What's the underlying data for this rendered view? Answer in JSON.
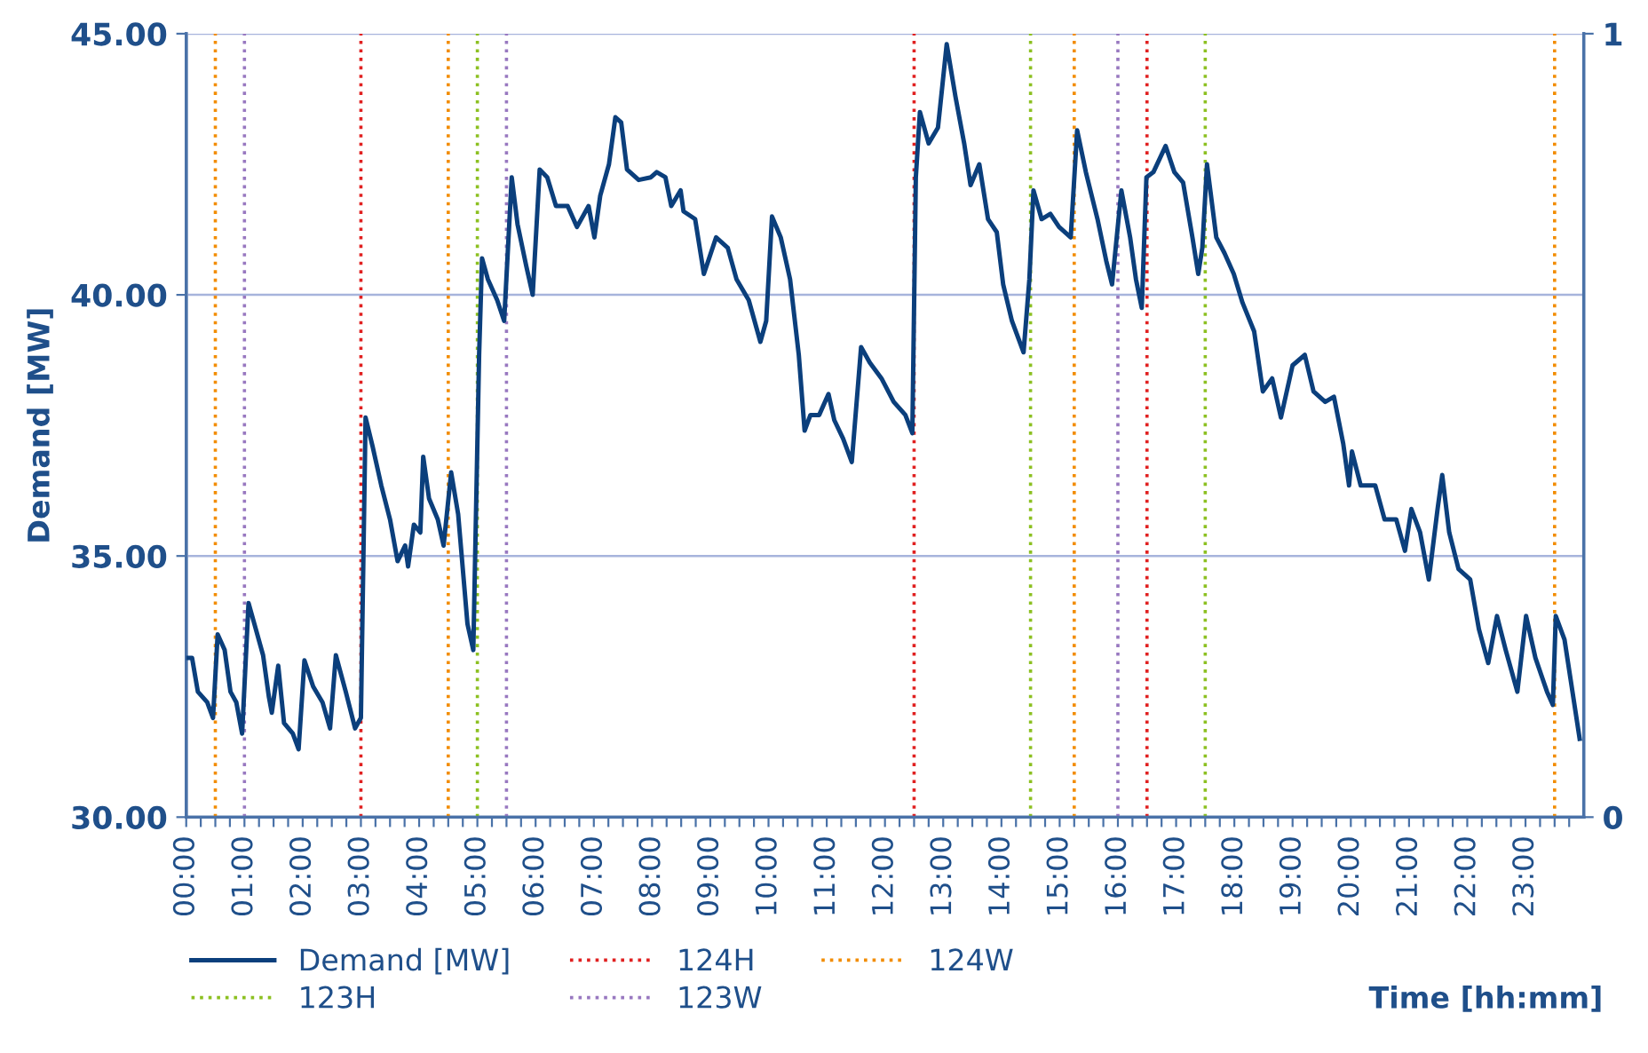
{
  "chart_data": {
    "type": "line",
    "xlabel": "Time [hh:mm]",
    "ylabel": "Demand [MW]",
    "xlim": [
      0,
      24
    ],
    "ylim": [
      30,
      45
    ],
    "y2lim": [
      0,
      1
    ],
    "yticks": [
      {
        "value": 30,
        "label": "30.00"
      },
      {
        "value": 35,
        "label": "35.00"
      },
      {
        "value": 40,
        "label": "40.00"
      },
      {
        "value": 45,
        "label": "45.00"
      }
    ],
    "y2ticks": [
      0,
      1
    ],
    "grid": "y",
    "legend": "bottom",
    "xticks": [
      {
        "value": 0,
        "label": "00:00"
      },
      {
        "value": 0.25,
        "label": null
      },
      {
        "value": 0.5,
        "label": null
      },
      {
        "value": 0.75,
        "label": null
      },
      {
        "value": 1,
        "label": "01:00"
      },
      {
        "value": 1.25,
        "label": null
      },
      {
        "value": 1.5,
        "label": null
      },
      {
        "value": 1.75,
        "label": null
      },
      {
        "value": 2,
        "label": "02:00"
      },
      {
        "value": 2.25,
        "label": null
      },
      {
        "value": 2.5,
        "label": null
      },
      {
        "value": 2.75,
        "label": null
      },
      {
        "value": 3,
        "label": "03:00"
      },
      {
        "value": 3.25,
        "label": null
      },
      {
        "value": 3.5,
        "label": null
      },
      {
        "value": 3.75,
        "label": null
      },
      {
        "value": 4,
        "label": "04:00"
      },
      {
        "value": 4.25,
        "label": null
      },
      {
        "value": 4.5,
        "label": null
      },
      {
        "value": 4.75,
        "label": null
      },
      {
        "value": 5,
        "label": "05:00"
      },
      {
        "value": 5.25,
        "label": null
      },
      {
        "value": 5.5,
        "label": null
      },
      {
        "value": 5.75,
        "label": null
      },
      {
        "value": 6,
        "label": "06:00"
      },
      {
        "value": 6.25,
        "label": null
      },
      {
        "value": 6.5,
        "label": null
      },
      {
        "value": 6.75,
        "label": null
      },
      {
        "value": 7,
        "label": "07:00"
      },
      {
        "value": 7.25,
        "label": null
      },
      {
        "value": 7.5,
        "label": null
      },
      {
        "value": 7.75,
        "label": null
      },
      {
        "value": 8,
        "label": "08:00"
      },
      {
        "value": 8.25,
        "label": null
      },
      {
        "value": 8.5,
        "label": null
      },
      {
        "value": 8.75,
        "label": null
      },
      {
        "value": 9,
        "label": "09:00"
      },
      {
        "value": 9.25,
        "label": null
      },
      {
        "value": 9.5,
        "label": null
      },
      {
        "value": 9.75,
        "label": null
      },
      {
        "value": 10,
        "label": "10:00"
      },
      {
        "value": 10.25,
        "label": null
      },
      {
        "value": 10.5,
        "label": null
      },
      {
        "value": 10.75,
        "label": null
      },
      {
        "value": 11,
        "label": "11:00"
      },
      {
        "value": 11.25,
        "label": null
      },
      {
        "value": 11.5,
        "label": null
      },
      {
        "value": 11.75,
        "label": null
      },
      {
        "value": 12,
        "label": "12:00"
      },
      {
        "value": 12.25,
        "label": null
      },
      {
        "value": 12.5,
        "label": null
      },
      {
        "value": 12.75,
        "label": null
      },
      {
        "value": 13,
        "label": "13:00"
      },
      {
        "value": 13.25,
        "label": null
      },
      {
        "value": 13.5,
        "label": null
      },
      {
        "value": 13.75,
        "label": null
      },
      {
        "value": 14,
        "label": "14:00"
      },
      {
        "value": 14.25,
        "label": null
      },
      {
        "value": 14.5,
        "label": null
      },
      {
        "value": 14.75,
        "label": null
      },
      {
        "value": 15,
        "label": "15:00"
      },
      {
        "value": 15.25,
        "label": null
      },
      {
        "value": 15.5,
        "label": null
      },
      {
        "value": 15.75,
        "label": null
      },
      {
        "value": 16,
        "label": "16:00"
      },
      {
        "value": 16.25,
        "label": null
      },
      {
        "value": 16.5,
        "label": null
      },
      {
        "value": 16.75,
        "label": null
      },
      {
        "value": 17,
        "label": "17:00"
      },
      {
        "value": 17.25,
        "label": null
      },
      {
        "value": 17.5,
        "label": null
      },
      {
        "value": 17.75,
        "label": null
      },
      {
        "value": 18,
        "label": "18:00"
      },
      {
        "value": 18.25,
        "label": null
      },
      {
        "value": 18.5,
        "label": null
      },
      {
        "value": 18.75,
        "label": null
      },
      {
        "value": 19,
        "label": "19:00"
      },
      {
        "value": 19.25,
        "label": null
      },
      {
        "value": 19.5,
        "label": null
      },
      {
        "value": 19.75,
        "label": null
      },
      {
        "value": 20,
        "label": "20:00"
      },
      {
        "value": 20.25,
        "label": null
      },
      {
        "value": 20.5,
        "label": null
      },
      {
        "value": 20.75,
        "label": null
      },
      {
        "value": 21,
        "label": "21:00"
      },
      {
        "value": 21.25,
        "label": null
      },
      {
        "value": 21.5,
        "label": null
      },
      {
        "value": 21.75,
        "label": null
      },
      {
        "value": 22,
        "label": "22:00"
      },
      {
        "value": 22.25,
        "label": null
      },
      {
        "value": 22.5,
        "label": null
      },
      {
        "value": 22.75,
        "label": null
      },
      {
        "value": 23,
        "label": "23:00"
      },
      {
        "value": 23.25,
        "label": null
      },
      {
        "value": 23.5,
        "label": null
      },
      {
        "value": 23.75,
        "label": null
      }
    ],
    "series": [
      {
        "name": "Demand [MW]",
        "color": "#0b3f7c",
        "line_style": "solid",
        "x": [
          0.03,
          0.1,
          0.2,
          0.36,
          0.46,
          0.54,
          0.66,
          0.76,
          0.86,
          0.96,
          1.07,
          1.17,
          1.32,
          1.42,
          1.47,
          1.58,
          1.68,
          1.83,
          1.93,
          2.03,
          2.18,
          2.34,
          2.47,
          2.57,
          2.74,
          2.9,
          3.0,
          3.08,
          3.2,
          3.35,
          3.5,
          3.63,
          3.76,
          3.81,
          3.91,
          4.02,
          4.07,
          4.17,
          4.32,
          4.42,
          4.55,
          4.67,
          4.83,
          4.93,
          5.03,
          5.08,
          5.18,
          5.34,
          5.46,
          5.59,
          5.69,
          5.84,
          5.95,
          6.07,
          6.2,
          6.35,
          6.55,
          6.71,
          6.91,
          7.01,
          7.11,
          7.26,
          7.37,
          7.47,
          7.57,
          7.77,
          7.98,
          8.08,
          8.23,
          8.33,
          8.49,
          8.54,
          8.74,
          8.89,
          9.1,
          9.3,
          9.45,
          9.66,
          9.86,
          9.96,
          10.06,
          10.21,
          10.37,
          10.52,
          10.62,
          10.72,
          10.87,
          11.03,
          11.13,
          11.28,
          11.43,
          11.59,
          11.74,
          11.94,
          12.15,
          12.35,
          12.47,
          12.53,
          12.6,
          12.75,
          12.91,
          13.06,
          13.21,
          13.36,
          13.47,
          13.62,
          13.77,
          13.92,
          14.03,
          14.18,
          14.38,
          14.48,
          14.55,
          14.69,
          14.84,
          14.99,
          15.19,
          15.3,
          15.45,
          15.65,
          15.8,
          15.9,
          16.06,
          16.21,
          16.31,
          16.41,
          16.49,
          16.61,
          16.82,
          16.97,
          17.12,
          17.28,
          17.38,
          17.45,
          17.53,
          17.69,
          17.83,
          17.99,
          18.14,
          18.34,
          18.49,
          18.65,
          18.8,
          19.0,
          19.21,
          19.36,
          19.56,
          19.71,
          19.87,
          19.97,
          20.02,
          20.17,
          20.42,
          20.58,
          20.78,
          20.93,
          21.04,
          21.19,
          21.34,
          21.49,
          21.57,
          21.69,
          21.85,
          22.05,
          22.2,
          22.36,
          22.51,
          22.66,
          22.86,
          23.01,
          23.17,
          23.37,
          23.47,
          23.52,
          23.67,
          23.93
        ],
        "values": [
          33.05,
          33.05,
          32.4,
          32.2,
          31.9,
          33.5,
          33.2,
          32.4,
          32.2,
          31.6,
          34.1,
          33.7,
          33.1,
          32.3,
          32.0,
          32.9,
          31.8,
          31.6,
          31.3,
          33.0,
          32.5,
          32.2,
          31.7,
          33.1,
          32.4,
          31.7,
          31.9,
          37.65,
          37.1,
          36.35,
          35.7,
          34.9,
          35.2,
          34.8,
          35.6,
          35.45,
          36.9,
          36.1,
          35.7,
          35.2,
          36.6,
          35.8,
          33.7,
          33.2,
          38.85,
          40.7,
          40.3,
          39.9,
          39.5,
          42.25,
          41.35,
          40.55,
          40.0,
          42.4,
          42.25,
          41.7,
          41.7,
          41.3,
          41.7,
          41.1,
          41.9,
          42.5,
          43.4,
          43.3,
          42.4,
          42.2,
          42.25,
          42.35,
          42.25,
          41.7,
          42.0,
          41.6,
          41.45,
          40.4,
          41.1,
          40.9,
          40.3,
          39.9,
          39.1,
          39.5,
          41.5,
          41.1,
          40.3,
          38.85,
          37.4,
          37.7,
          37.7,
          38.1,
          37.6,
          37.25,
          36.8,
          39.0,
          38.7,
          38.4,
          37.95,
          37.7,
          37.35,
          42.25,
          43.5,
          42.9,
          43.2,
          44.8,
          43.8,
          42.9,
          42.1,
          42.5,
          41.45,
          41.2,
          40.2,
          39.5,
          38.9,
          40.3,
          42.0,
          41.45,
          41.55,
          41.3,
          41.1,
          43.15,
          42.35,
          41.45,
          40.65,
          40.2,
          42.0,
          41.1,
          40.3,
          39.75,
          42.25,
          42.35,
          42.85,
          42.35,
          42.15,
          41.1,
          40.4,
          40.9,
          42.5,
          41.1,
          40.8,
          40.4,
          39.85,
          39.3,
          38.15,
          38.4,
          37.65,
          38.65,
          38.85,
          38.15,
          37.95,
          38.05,
          37.15,
          36.35,
          37.0,
          36.35,
          36.35,
          35.7,
          35.7,
          35.1,
          35.9,
          35.45,
          34.55,
          35.9,
          36.55,
          35.45,
          34.75,
          34.55,
          33.6,
          32.95,
          33.85,
          33.2,
          32.4,
          33.85,
          33.05,
          32.4,
          32.15,
          33.85,
          33.4,
          31.5
        ]
      }
    ],
    "ref_lines": [
      {
        "axis": "x",
        "value": 3.0,
        "label": "124H",
        "color": "#e02020",
        "line_style": "dotted"
      },
      {
        "axis": "x",
        "value": 0.5,
        "label": "124W",
        "color": "#f28c00",
        "line_style": "dotted"
      },
      {
        "axis": "x",
        "value": 5.0,
        "label": "123H",
        "color": "#8cc021",
        "line_style": "dotted"
      },
      {
        "axis": "x",
        "value": 1.0,
        "label": "123W",
        "color": "#9878c0",
        "line_style": "dotted"
      },
      {
        "axis": "x",
        "value": 12.5,
        "color": "#e02020",
        "line_style": "dotted"
      },
      {
        "axis": "x",
        "value": 16.5,
        "color": "#e02020",
        "line_style": "dotted"
      },
      {
        "axis": "x",
        "value": 4.5,
        "color": "#f28c00",
        "line_style": "dotted"
      },
      {
        "axis": "x",
        "value": 15.25,
        "color": "#f28c00",
        "line_style": "dotted"
      },
      {
        "axis": "x",
        "value": 23.5,
        "color": "#f28c00",
        "line_style": "dotted"
      },
      {
        "axis": "x",
        "value": 14.5,
        "color": "#8cc021",
        "line_style": "dotted"
      },
      {
        "axis": "x",
        "value": 17.5,
        "color": "#8cc021",
        "line_style": "dotted"
      },
      {
        "axis": "x",
        "value": 5.5,
        "color": "#9878c0",
        "line_style": "dotted"
      },
      {
        "axis": "x",
        "value": 16.0,
        "color": "#9878c0",
        "line_style": "dotted"
      }
    ]
  }
}
